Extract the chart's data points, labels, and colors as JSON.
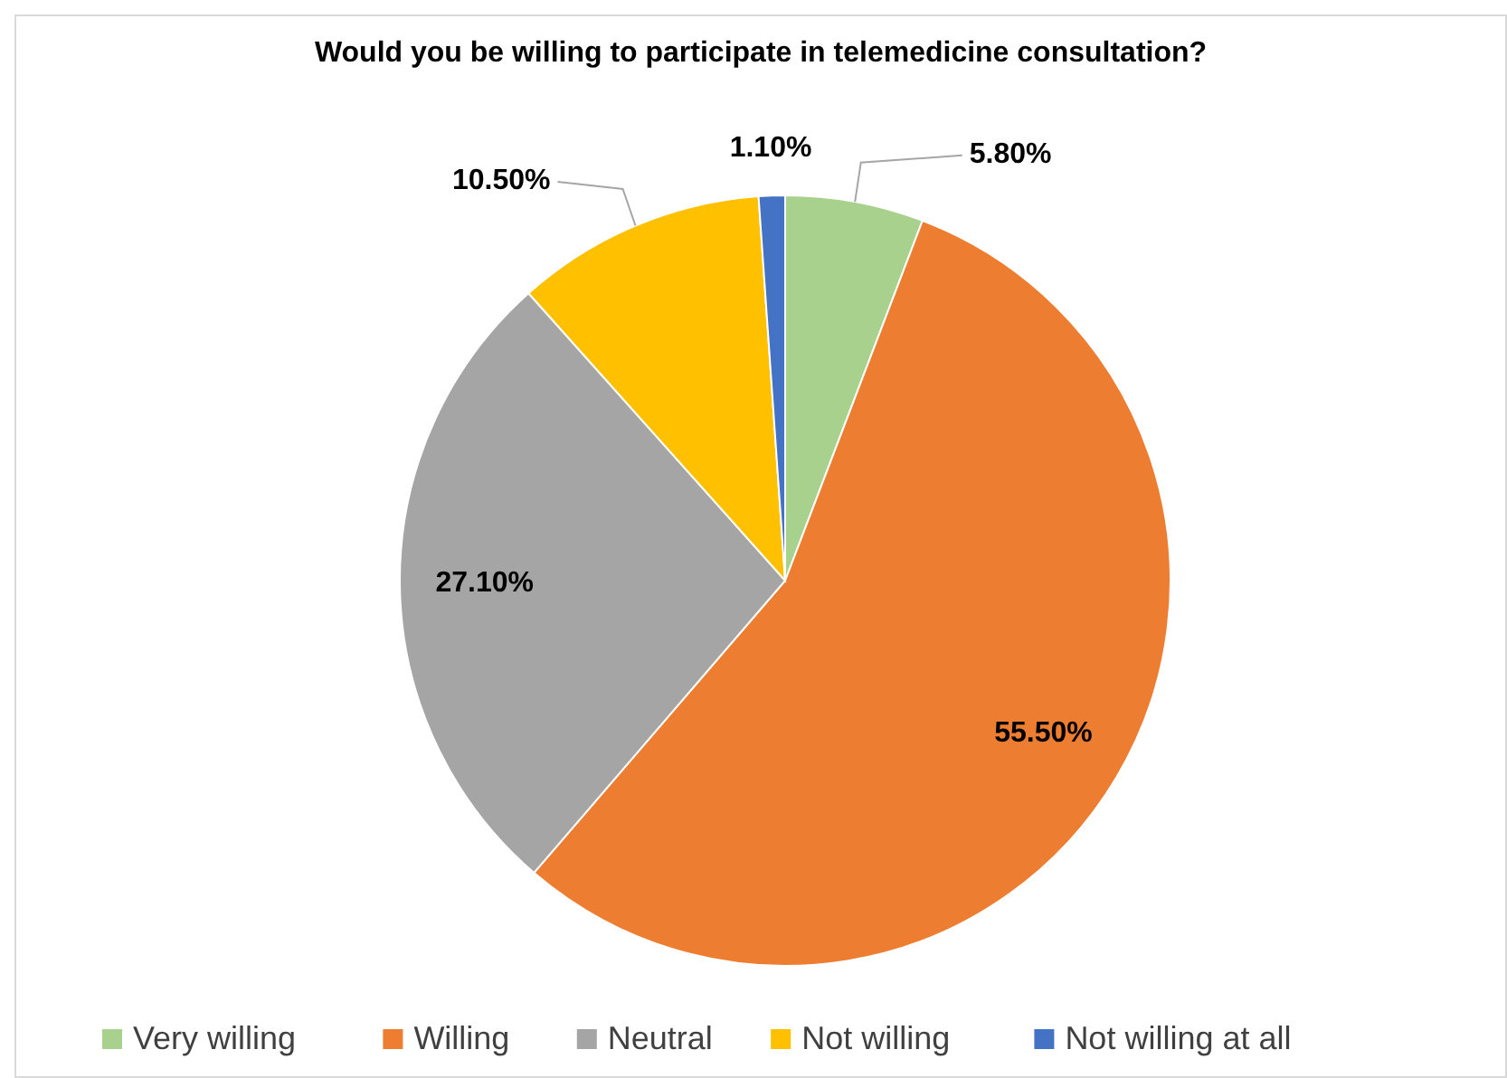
{
  "chart_data": {
    "type": "pie",
    "title": "Would you be willing to participate in telemedicine consultation?",
    "categories": [
      "Very willing",
      "Willing",
      "Neutral",
      "Not willing",
      "Not willing at all"
    ],
    "values": [
      5.8,
      55.5,
      27.1,
      10.5,
      1.1
    ],
    "colors": [
      "#a9d18e",
      "#ed7d31",
      "#a5a5a5",
      "#ffc000",
      "#4472c4"
    ],
    "value_labels": [
      "5.80%",
      "55.50%",
      "27.10%",
      "10.50%",
      "1.10%"
    ],
    "legend": "bottom"
  }
}
